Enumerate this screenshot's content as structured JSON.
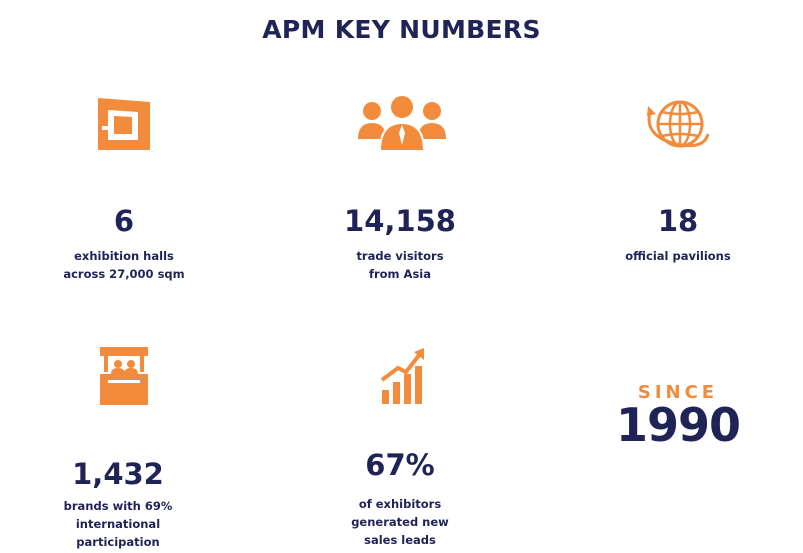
{
  "title": "APM KEY NUMBERS",
  "colors": {
    "accent": "#f28c3c",
    "text": "#1f2356",
    "background": "#ffffff"
  },
  "stats": [
    {
      "icon": "floor-plan-icon",
      "value": "6",
      "label_lines": [
        "exhibition halls",
        "across 27,000 sqm"
      ]
    },
    {
      "icon": "people-group-icon",
      "value": "14,158",
      "label_lines": [
        "trade visitors",
        "from Asia"
      ]
    },
    {
      "icon": "globe-orbit-icon",
      "value": "18",
      "label_lines": [
        "official pavilions"
      ]
    },
    {
      "icon": "booth-icon",
      "value": "1,432",
      "label_lines": [
        "brands with 69%",
        "international",
        "participation"
      ]
    },
    {
      "icon": "growth-chart-icon",
      "value": "67%",
      "label_lines": [
        "of exhibitors",
        "generated new",
        "sales leads"
      ]
    }
  ],
  "since": {
    "label": "SINCE",
    "year": "1990"
  }
}
